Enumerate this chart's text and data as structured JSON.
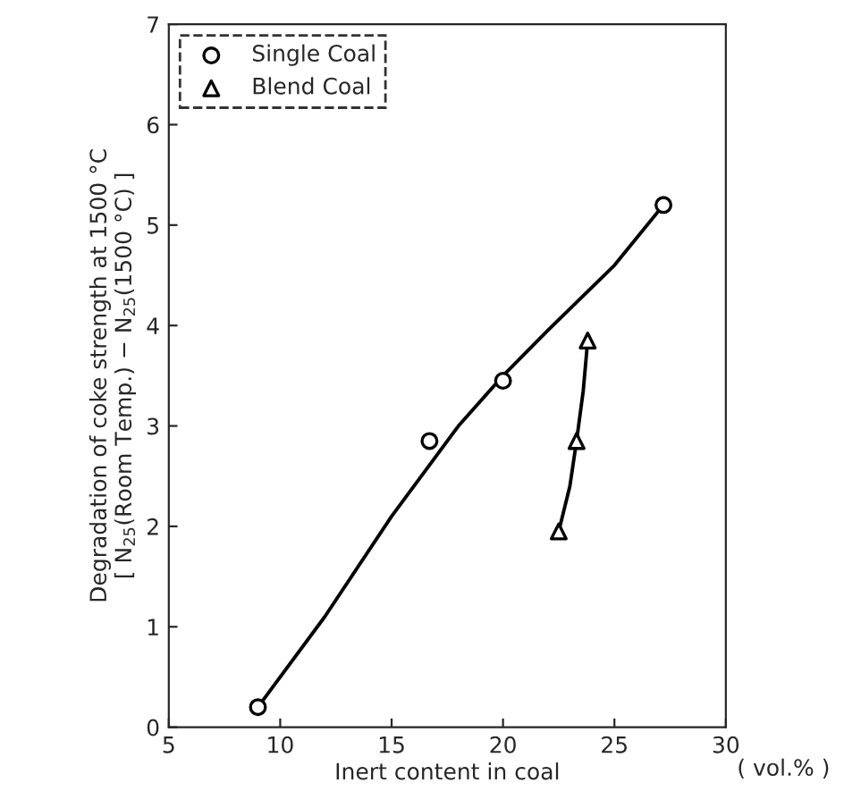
{
  "chart_data": {
    "type": "scatter",
    "xlabel": "Inert content in coal",
    "ylabel": "Degradation of coke strength at 1500 °C\n[ N$_{25}$(Room Temp.) − N$_{25}$(1500 °C) ]",
    "annotations": [
      "( vol.% )"
    ],
    "series": [
      {
        "name": "Single Coal",
        "color": "#000000",
        "marker": "circle",
        "x": [
          9,
          16.7,
          20,
          27.2
        ],
        "values": [
          0.2,
          2.85,
          3.45,
          5.2
        ]
      },
      {
        "name": "Blend Coal",
        "color": "#000000",
        "marker": "triangle",
        "x": [
          22.5,
          23.3,
          23.8
        ],
        "values": [
          1.95,
          2.85,
          3.85
        ]
      },
      {
        "type": "line",
        "color": "#000000",
        "marker": "none",
        "x": [
          9,
          12,
          15,
          18,
          20,
          22,
          25,
          27.2
        ],
        "values": [
          0.2,
          1.1,
          2.1,
          3.0,
          3.5,
          3.95,
          4.6,
          5.2
        ]
      },
      {
        "type": "line",
        "color": "#000000",
        "marker": "none",
        "x": [
          22.5,
          23,
          23.3,
          23.6,
          23.8
        ],
        "values": [
          1.95,
          2.4,
          2.85,
          3.35,
          3.85
        ]
      }
    ],
    "xlim": [
      5,
      30
    ],
    "xticks": [
      5,
      10,
      15,
      20,
      25,
      30
    ],
    "ylim": [
      0,
      7
    ],
    "yticks": [
      0,
      1,
      2,
      3,
      4,
      5,
      6,
      7
    ],
    "grid": false,
    "legend": "top left"
  }
}
